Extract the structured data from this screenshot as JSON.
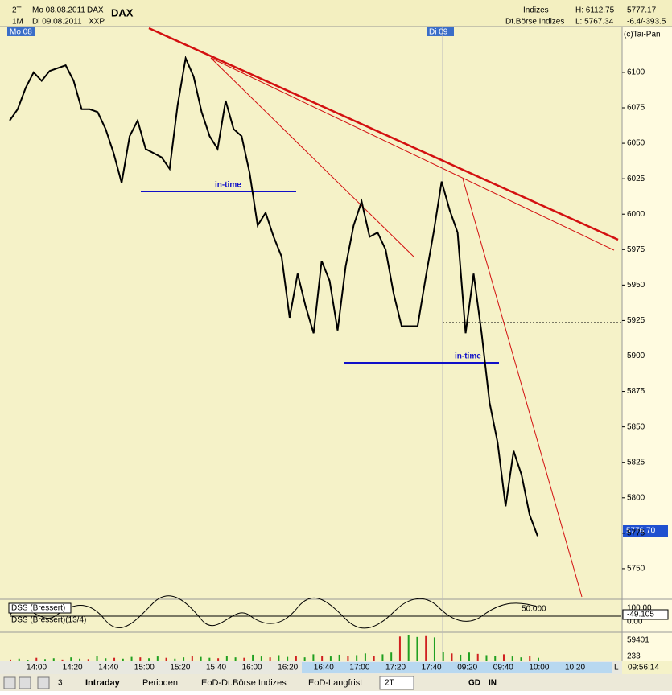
{
  "header": {
    "periods": [
      "2T",
      "1M"
    ],
    "dates": [
      "Mo 08.08.2011",
      "Di 09.08.2011"
    ],
    "symbol": "DAX",
    "exchange": "XXP",
    "title": "DAX",
    "group": "Indizes",
    "market": "Dt.Börse Indizes",
    "high": "H: 6112.75",
    "low": "L: 5767.34",
    "last": "5777.17",
    "change": "-6.4/-393.5",
    "copyright": "(c)Tai-Pan"
  },
  "day_markers": [
    "Mo 08",
    "Di 09"
  ],
  "price_chart": {
    "ylim": [
      5728.4,
      6132.3
    ],
    "yticks": [
      6100,
      6075,
      6050,
      6025,
      6000,
      5975,
      5950,
      5925,
      5900,
      5875,
      5850,
      5825,
      5800,
      5775,
      5750
    ],
    "close": [
      6066,
      6074,
      6089,
      6100,
      6094,
      6101,
      6103,
      6105,
      6094,
      6074,
      6074,
      6072,
      6060,
      6043,
      6022,
      6055,
      6066,
      6046,
      6043,
      6040,
      6032,
      6077,
      6110,
      6097,
      6072,
      6055,
      6046,
      6080,
      6060,
      6055,
      6029,
      5992,
      6001,
      5984,
      5970,
      5927,
      5958,
      5935,
      5916,
      5967,
      5953,
      5918,
      5963,
      5992,
      6009,
      5984,
      5987,
      5975,
      5944,
      5921,
      5921,
      5921,
      5955,
      5987,
      6023,
      6003,
      5987,
      5916,
      5958,
      5916,
      5867,
      5839,
      5794,
      5833,
      5816,
      5788,
      5773
    ],
    "current": "5776.70",
    "annotations": [
      "in-time",
      "in-time"
    ]
  },
  "x_labels": [
    "14:00",
    "14:20",
    "14:40",
    "15:00",
    "15:20",
    "15:40",
    "16:00",
    "16:20",
    "16:40",
    "17:00",
    "17:20",
    "17:40",
    "09:20",
    "09:40",
    "10:00",
    "10:20"
  ],
  "indicator": {
    "labels": [
      "DSS (Bressert)",
      "DSS (Bressert)(13/4)"
    ],
    "levels": [
      "100.00",
      "0.00",
      "50.000"
    ],
    "value": "-49.105"
  },
  "volume": {
    "ylim": [
      0,
      59401
    ],
    "ticks": [
      "59401",
      "233"
    ],
    "values": [
      4000,
      6000,
      3000,
      8000,
      5000,
      7000,
      4000,
      9000,
      6000,
      5000,
      12000,
      7000,
      8000,
      6000,
      10000,
      9000,
      7000,
      11000,
      8000,
      6000,
      9000,
      13000,
      10000,
      8000,
      7000,
      12000,
      9000,
      8000,
      15000,
      11000,
      9000,
      14000,
      10000,
      12000,
      9000,
      16000,
      13000,
      11000,
      15000,
      12000,
      14000,
      18000,
      13000,
      16000,
      20000,
      57000,
      59401,
      56000,
      58000,
      55000,
      22000,
      18000,
      15000,
      20000,
      17000,
      14000,
      12000,
      16000,
      11000,
      9000,
      13000,
      8000
    ]
  },
  "status": {
    "time": "09:56:14",
    "scale": "L"
  },
  "toolbar": {
    "tabs": [
      "Intraday",
      "Perioden",
      "EoD-Dt.Börse Indizes",
      "EoD-Langfrist"
    ],
    "period": "2T",
    "buttons": [
      "GD",
      "IN"
    ],
    "counter": "3"
  }
}
